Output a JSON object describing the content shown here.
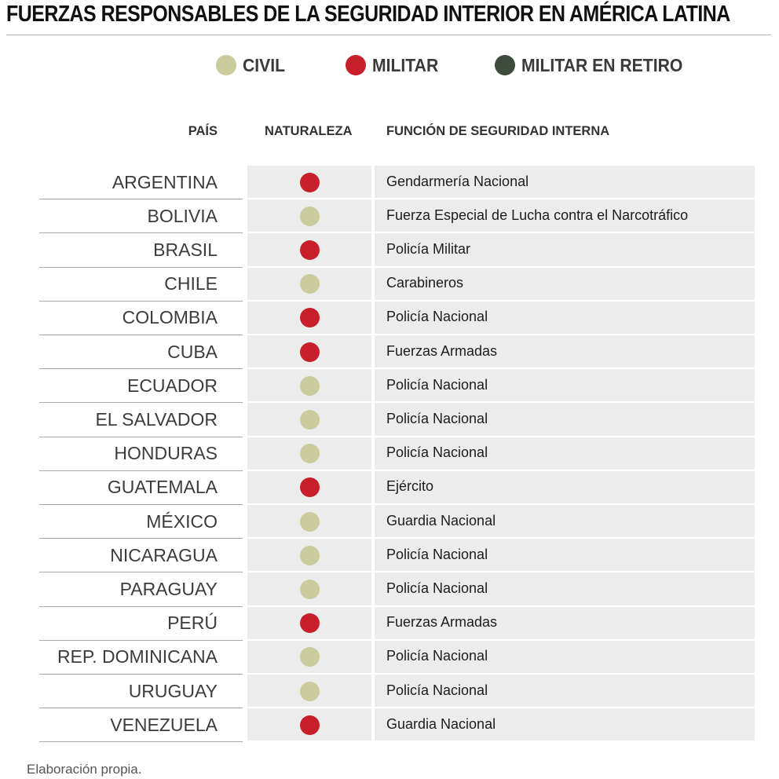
{
  "title": "FUERZAS RESPONSABLES DE LA SEGURIDAD INTERIOR EN AMÉRICA LATINA",
  "source": "Elaboración propia.",
  "colors": {
    "civil": "#cacc9d",
    "militar": "#c8202a",
    "retiro": "#3e4c3d"
  },
  "legend": [
    {
      "label": "CIVIL",
      "color": "#cacc9d"
    },
    {
      "label": "MILITAR",
      "color": "#c8202a"
    },
    {
      "label": "MILITAR EN RETIRO",
      "color": "#3e4c3d"
    }
  ],
  "headers": {
    "pais": "PAÍS",
    "naturaleza": "NATURALEZA",
    "funcion": "FUNCIÓN DE SEGURIDAD INTERNA"
  },
  "chart_data": {
    "type": "table",
    "title": "FUERZAS RESPONSABLES DE LA SEGURIDAD INTERIOR EN AMÉRICA LATINA",
    "columns": [
      "PAÍS",
      "NATURALEZA",
      "FUNCIÓN DE SEGURIDAD INTERNA"
    ],
    "legend": [
      "CIVIL",
      "MILITAR",
      "MILITAR EN RETIRO"
    ],
    "rows": [
      {
        "country": "ARGENTINA",
        "nature": "MILITAR",
        "function": "Gendarmería Nacional"
      },
      {
        "country": "BOLIVIA",
        "nature": "CIVIL",
        "function": "Fuerza Especial de Lucha contra el Narcotráfico"
      },
      {
        "country": "BRASIL",
        "nature": "MILITAR",
        "function": "Policía Militar"
      },
      {
        "country": "CHILE",
        "nature": "CIVIL",
        "function": "Carabineros"
      },
      {
        "country": "COLOMBIA",
        "nature": "MILITAR",
        "function": "Policía Nacional"
      },
      {
        "country": "CUBA",
        "nature": "MILITAR",
        "function": "Fuerzas Armadas"
      },
      {
        "country": "ECUADOR",
        "nature": "CIVIL",
        "function": "Policía Nacional"
      },
      {
        "country": "EL SALVADOR",
        "nature": "CIVIL",
        "function": "Policía Nacional"
      },
      {
        "country": "HONDURAS",
        "nature": "CIVIL",
        "function": "Policía Nacional"
      },
      {
        "country": "GUATEMALA",
        "nature": "MILITAR",
        "function": "Ejército"
      },
      {
        "country": "MÉXICO",
        "nature": "CIVIL",
        "function": "Guardia Nacional"
      },
      {
        "country": "NICARAGUA",
        "nature": "CIVIL",
        "function": "Policía Nacional"
      },
      {
        "country": "PARAGUAY",
        "nature": "CIVIL",
        "function": "Policía Nacional"
      },
      {
        "country": "PERÚ",
        "nature": "MILITAR",
        "function": "Fuerzas Armadas"
      },
      {
        "country": "REP. DOMINICANA",
        "nature": "CIVIL",
        "function": "Policía Nacional"
      },
      {
        "country": "URUGUAY",
        "nature": "CIVIL",
        "function": "Policía Nacional"
      },
      {
        "country": "VENEZUELA",
        "nature": "MILITAR",
        "function": "Guardia Nacional"
      }
    ]
  }
}
